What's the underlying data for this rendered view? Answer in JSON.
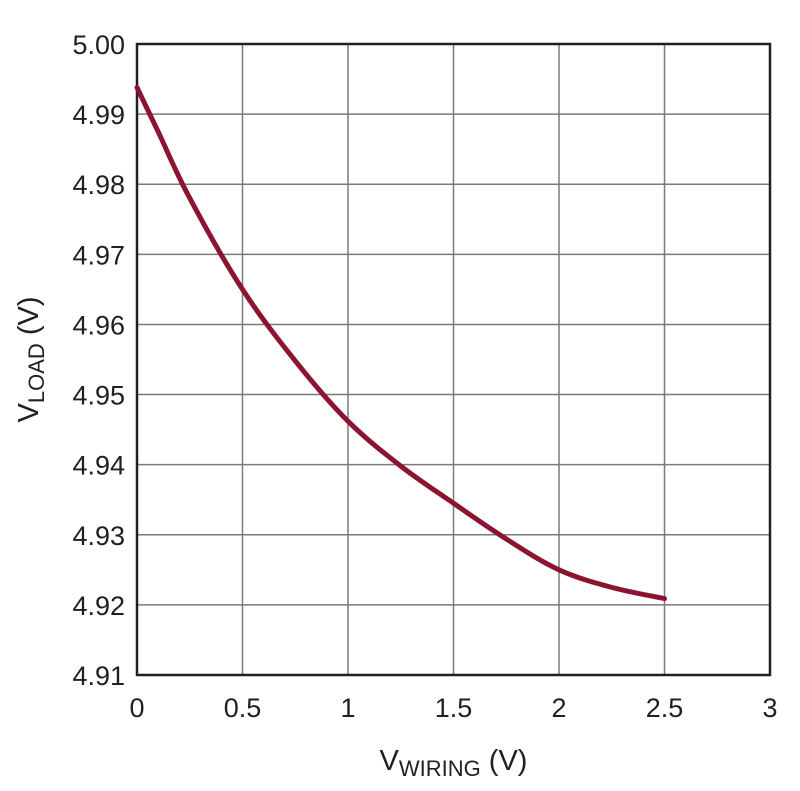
{
  "chart_data": {
    "type": "line",
    "title": "",
    "xlabel": {
      "main": "V",
      "sub": "WIRING",
      "unit": " (V)"
    },
    "ylabel": {
      "main": "V",
      "sub": "LOAD",
      "unit": " (V)"
    },
    "xlim": [
      0,
      3
    ],
    "ylim": [
      4.91,
      5.0
    ],
    "x_ticks": [
      "0",
      "0.5",
      "1",
      "1.5",
      "2",
      "2.5",
      "3"
    ],
    "y_ticks": [
      "4.91",
      "4.92",
      "4.93",
      "4.94",
      "4.95",
      "4.96",
      "4.97",
      "4.98",
      "4.99",
      "5.00"
    ],
    "grid": true,
    "line_color": "#8b1530",
    "series": [
      {
        "x": [
          0,
          0.1,
          0.25,
          0.5,
          0.75,
          1.0,
          1.25,
          1.5,
          1.75,
          2.0,
          2.25,
          2.5
        ],
        "values": [
          4.9938,
          4.9875,
          4.978,
          4.965,
          4.9548,
          4.9462,
          4.9398,
          4.9345,
          4.9294,
          4.925,
          4.9225,
          4.9209
        ]
      }
    ]
  }
}
